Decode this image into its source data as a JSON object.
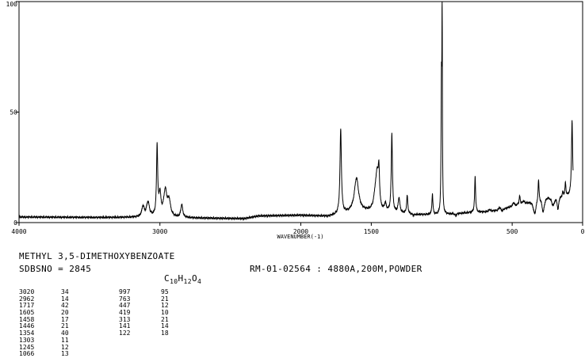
{
  "chart_data": {
    "type": "line",
    "title": "",
    "xlabel": "WAVENUMBER(-1)",
    "ylabel": "",
    "xlim": [
      4000,
      0
    ],
    "ylim": [
      0,
      100
    ],
    "x_ticks": [
      4000,
      3000,
      2000,
      1500,
      500,
      0
    ],
    "x_tick_labels": [
      "4000",
      "3000",
      "2000",
      "1500",
      "500",
      "0"
    ],
    "y_ticks": [
      0,
      50,
      100
    ],
    "y_tick_labels": [
      "0",
      "50",
      "100"
    ],
    "grid": false,
    "legend": "none",
    "line_color": "#000000",
    "baseline_points": [
      [
        3900,
        2.5
      ],
      [
        3400,
        2.3
      ],
      [
        3100,
        2.4
      ],
      [
        2700,
        2.0
      ],
      [
        2400,
        1.8
      ],
      [
        2300,
        3.0
      ],
      [
        2000,
        3.3
      ],
      [
        1800,
        2.8
      ],
      [
        1740,
        3.5
      ],
      [
        1650,
        4.5
      ],
      [
        1600,
        5.0
      ],
      [
        1500,
        5.0
      ],
      [
        1400,
        4.5
      ],
      [
        1300,
        4.2
      ],
      [
        1200,
        3.6
      ],
      [
        1000,
        3.5
      ],
      [
        800,
        4.5
      ],
      [
        700,
        4.8
      ],
      [
        600,
        5.5
      ],
      [
        480,
        7.5
      ],
      [
        400,
        9.0
      ],
      [
        320,
        11.0
      ],
      [
        250,
        12.0
      ]
    ],
    "peaks": [
      {
        "x": 3120,
        "y": 7,
        "w": 10
      },
      {
        "x": 3085,
        "y": 9,
        "w": 12
      },
      {
        "x": 3020,
        "y": 34,
        "w": 5
      },
      {
        "x": 3000,
        "y": 12,
        "w": 8
      },
      {
        "x": 2962,
        "y": 14,
        "w": 14
      },
      {
        "x": 2935,
        "y": 9,
        "w": 12
      },
      {
        "x": 2845,
        "y": 8,
        "w": 8
      },
      {
        "x": 1717,
        "y": 42,
        "w": 6
      },
      {
        "x": 1605,
        "y": 20,
        "w": 18
      },
      {
        "x": 1470,
        "y": 13,
        "w": 14
      },
      {
        "x": 1458,
        "y": 17,
        "w": 9
      },
      {
        "x": 1446,
        "y": 21,
        "w": 6
      },
      {
        "x": 1400,
        "y": 8,
        "w": 8
      },
      {
        "x": 1354,
        "y": 40,
        "w": 5
      },
      {
        "x": 1303,
        "y": 11,
        "w": 7
      },
      {
        "x": 1245,
        "y": 12,
        "w": 5
      },
      {
        "x": 1200,
        "y": 3,
        "w": 6
      },
      {
        "x": 1066,
        "y": 13,
        "w": 4
      },
      {
        "x": 1002,
        "y": 60,
        "w": 3
      },
      {
        "x": 997,
        "y": 95,
        "w": 2
      },
      {
        "x": 900,
        "y": 3,
        "w": 6
      },
      {
        "x": 763,
        "y": 21,
        "w": 4
      },
      {
        "x": 660,
        "y": 6,
        "w": 6
      },
      {
        "x": 590,
        "y": 7,
        "w": 7
      },
      {
        "x": 570,
        "y": 5,
        "w": 6
      },
      {
        "x": 520,
        "y": 7,
        "w": 7
      },
      {
        "x": 490,
        "y": 9,
        "w": 8
      },
      {
        "x": 447,
        "y": 12,
        "w": 5
      },
      {
        "x": 419,
        "y": 10,
        "w": 6
      },
      {
        "x": 340,
        "y": 4,
        "w": 12
      },
      {
        "x": 313,
        "y": 21,
        "w": 4
      },
      {
        "x": 280,
        "y": 5,
        "w": 10
      },
      {
        "x": 210,
        "y": 8,
        "w": 12
      },
      {
        "x": 175,
        "y": 6,
        "w": 6
      },
      {
        "x": 141,
        "y": 14,
        "w": 4
      },
      {
        "x": 122,
        "y": 18,
        "w": 4
      },
      {
        "x": 75,
        "y": 46,
        "w": 5
      }
    ],
    "peak_table": [
      {
        "x": "3020",
        "y": "34"
      },
      {
        "x": "2962",
        "y": "14"
      },
      {
        "x": "1717",
        "y": "42"
      },
      {
        "x": "1605",
        "y": "20"
      },
      {
        "x": "1458",
        "y": "17"
      },
      {
        "x": "1446",
        "y": "21"
      },
      {
        "x": "1354",
        "y": "40"
      },
      {
        "x": "1303",
        "y": "11"
      },
      {
        "x": "1245",
        "y": "12"
      },
      {
        "x": "1066",
        "y": "13"
      },
      {
        "x": "997",
        "y": "95"
      },
      {
        "x": "763",
        "y": "21"
      },
      {
        "x": "447",
        "y": "12"
      },
      {
        "x": "419",
        "y": "10"
      },
      {
        "x": "313",
        "y": "21"
      },
      {
        "x": "141",
        "y": "14"
      },
      {
        "x": "122",
        "y": "18"
      }
    ]
  },
  "info": {
    "compound": "METHYL 3,5-DIMETHOXYBENZOATE",
    "sdbs_label": "SDBSNO = 2845",
    "formula": {
      "c": "C",
      "c_n": "10",
      "h": "H",
      "h_n": "12",
      "o": "O",
      "o_n": "4"
    },
    "conditions": "RM-01-02564 : 4880A,200M,POWDER"
  }
}
